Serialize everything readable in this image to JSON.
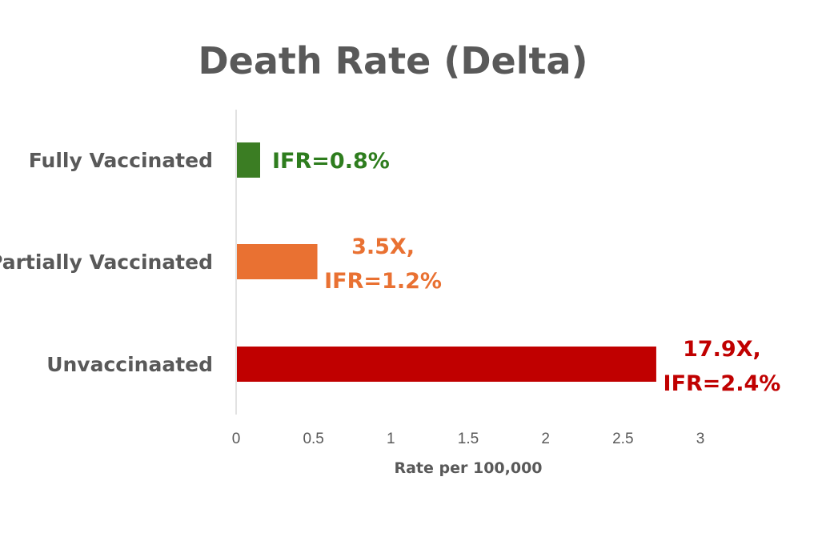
{
  "chart_data": {
    "type": "bar",
    "orientation": "horizontal",
    "title": "Death Rate (Delta)",
    "xlabel": "Rate per 100,000",
    "ylabel": "",
    "xlim": [
      0,
      3
    ],
    "x_ticks": [
      "0",
      "0.5",
      "1",
      "1.5",
      "2",
      "2.5",
      "3"
    ],
    "grid": false,
    "legend": "none",
    "categories": [
      "Fully Vaccinated",
      "Partially Vaccinated",
      "Unvaccinaated"
    ],
    "values": [
      0.15,
      0.52,
      2.71
    ],
    "colors": [
      "#3b7d23",
      "#e97132",
      "#c00000"
    ],
    "data_labels": [
      [
        "IFR=0.8%"
      ],
      [
        "3.5X,",
        "IFR=1.2%"
      ],
      [
        "17.9X,",
        "IFR=2.4%"
      ]
    ],
    "data_label_colors": [
      "#2e7d1e",
      "#e97132",
      "#c00000"
    ]
  }
}
